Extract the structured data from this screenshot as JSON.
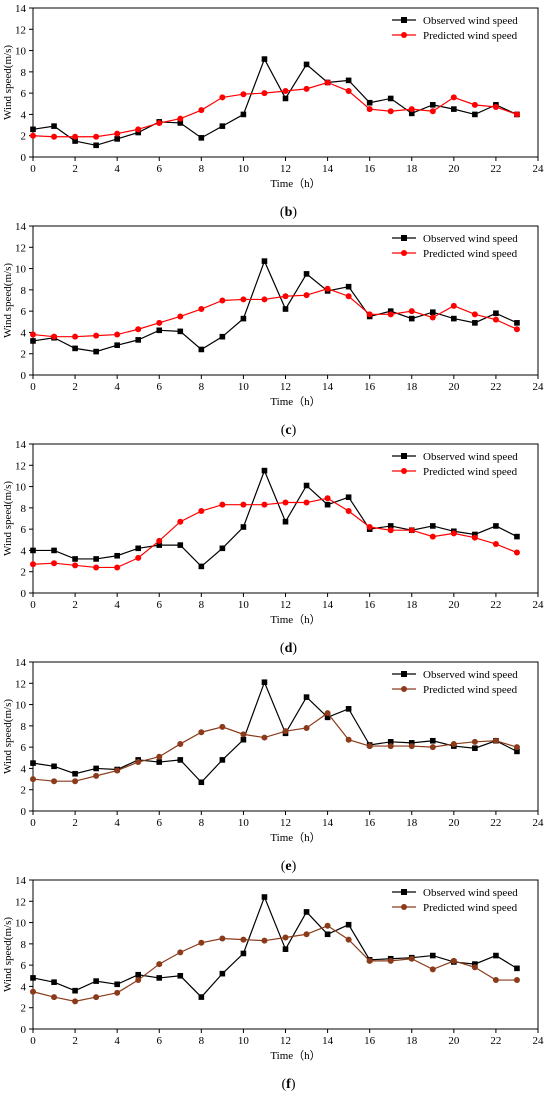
{
  "chart_data": [
    {
      "type": "line",
      "caption": "(b)",
      "caption_letter": "b",
      "xlabel": "Time（h）",
      "ylabel": "Wind speed(m/s)",
      "xlim": [
        0,
        24
      ],
      "ylim": [
        0,
        14
      ],
      "xticks": [
        0,
        2,
        4,
        6,
        8,
        10,
        12,
        14,
        16,
        18,
        20,
        22,
        24
      ],
      "yticks": [
        0,
        2,
        4,
        6,
        8,
        10,
        12,
        14
      ],
      "legend_position": "top-right",
      "x": [
        0,
        1,
        2,
        3,
        4,
        5,
        6,
        7,
        8,
        9,
        10,
        11,
        12,
        13,
        14,
        15,
        16,
        17,
        18,
        19,
        20,
        21,
        22,
        23
      ],
      "series": [
        {
          "name": "Observed wind speed",
          "color": "#000000",
          "marker": "square",
          "values": [
            2.6,
            2.9,
            1.5,
            1.1,
            1.7,
            2.3,
            3.3,
            3.2,
            1.8,
            2.9,
            4.0,
            9.2,
            5.5,
            8.7,
            7.0,
            7.2,
            5.1,
            5.5,
            4.1,
            4.9,
            4.5,
            4.0,
            4.9,
            4.0
          ]
        },
        {
          "name": "Predicted wind speed",
          "color": "#ff0000",
          "marker": "circle",
          "values": [
            2.0,
            1.9,
            1.9,
            1.9,
            2.2,
            2.6,
            3.2,
            3.6,
            4.4,
            5.6,
            5.9,
            6.0,
            6.2,
            6.4,
            7.0,
            6.2,
            4.5,
            4.3,
            4.5,
            4.3,
            5.6,
            4.9,
            4.7,
            4.0
          ]
        }
      ]
    },
    {
      "type": "line",
      "caption": "(c)",
      "caption_letter": "c",
      "xlabel": "Time（h）",
      "ylabel": "Wind speed(m/s)",
      "xlim": [
        0,
        24
      ],
      "ylim": [
        0,
        14
      ],
      "xticks": [
        0,
        2,
        4,
        6,
        8,
        10,
        12,
        14,
        16,
        18,
        20,
        22,
        24
      ],
      "yticks": [
        0,
        2,
        4,
        6,
        8,
        10,
        12,
        14
      ],
      "legend_position": "top-right",
      "x": [
        0,
        1,
        2,
        3,
        4,
        5,
        6,
        7,
        8,
        9,
        10,
        11,
        12,
        13,
        14,
        15,
        16,
        17,
        18,
        19,
        20,
        21,
        22,
        23
      ],
      "series": [
        {
          "name": "Observed wind speed",
          "color": "#000000",
          "marker": "square",
          "values": [
            3.2,
            3.5,
            2.5,
            2.2,
            2.8,
            3.3,
            4.2,
            4.1,
            2.4,
            3.6,
            5.3,
            10.7,
            6.2,
            9.5,
            7.9,
            8.3,
            5.5,
            6.0,
            5.3,
            5.9,
            5.3,
            4.9,
            5.8,
            4.9
          ]
        },
        {
          "name": "Predicted wind speed",
          "color": "#ff0000",
          "marker": "circle",
          "values": [
            3.8,
            3.6,
            3.6,
            3.7,
            3.8,
            4.3,
            4.9,
            5.5,
            6.2,
            7.0,
            7.1,
            7.1,
            7.4,
            7.5,
            8.1,
            7.4,
            5.7,
            5.7,
            6.0,
            5.4,
            6.5,
            5.7,
            5.2,
            4.3
          ]
        }
      ]
    },
    {
      "type": "line",
      "caption": "(d)",
      "caption_letter": "d",
      "xlabel": "Time（h）",
      "ylabel": "Wind speed(m/s)",
      "xlim": [
        0,
        24
      ],
      "ylim": [
        0,
        14
      ],
      "xticks": [
        0,
        2,
        4,
        6,
        8,
        10,
        12,
        14,
        16,
        18,
        20,
        22,
        24
      ],
      "yticks": [
        0,
        2,
        4,
        6,
        8,
        10,
        12,
        14
      ],
      "legend_position": "top-right",
      "x": [
        0,
        1,
        2,
        3,
        4,
        5,
        6,
        7,
        8,
        9,
        10,
        11,
        12,
        13,
        14,
        15,
        16,
        17,
        18,
        19,
        20,
        21,
        22,
        23
      ],
      "series": [
        {
          "name": "Observed wind speed",
          "color": "#000000",
          "marker": "square",
          "values": [
            4.0,
            4.0,
            3.2,
            3.2,
            3.5,
            4.2,
            4.5,
            4.5,
            2.5,
            4.2,
            6.2,
            11.5,
            6.7,
            10.1,
            8.3,
            9.0,
            6.0,
            6.3,
            5.9,
            6.3,
            5.8,
            5.5,
            6.3,
            5.3
          ]
        },
        {
          "name": "Predicted wind speed",
          "color": "#ff0000",
          "marker": "circle",
          "values": [
            2.7,
            2.8,
            2.6,
            2.4,
            2.4,
            3.3,
            4.9,
            6.7,
            7.7,
            8.3,
            8.3,
            8.3,
            8.5,
            8.5,
            8.9,
            7.7,
            6.2,
            5.9,
            5.9,
            5.3,
            5.6,
            5.2,
            4.6,
            3.8
          ]
        }
      ]
    },
    {
      "type": "line",
      "caption": "(e)",
      "caption_letter": "e",
      "xlabel": "Time（h）",
      "ylabel": "Wind speed(m/s)",
      "xlim": [
        0,
        24
      ],
      "ylim": [
        0,
        14
      ],
      "xticks": [
        0,
        2,
        4,
        6,
        8,
        10,
        12,
        14,
        16,
        18,
        20,
        22,
        24
      ],
      "yticks": [
        0,
        2,
        4,
        6,
        8,
        10,
        12,
        14
      ],
      "legend_position": "top-right",
      "x": [
        0,
        1,
        2,
        3,
        4,
        5,
        6,
        7,
        8,
        9,
        10,
        11,
        12,
        13,
        14,
        15,
        16,
        17,
        18,
        19,
        20,
        21,
        22,
        23
      ],
      "series": [
        {
          "name": "Observed wind speed",
          "color": "#000000",
          "marker": "square",
          "values": [
            4.5,
            4.2,
            3.5,
            4.0,
            3.9,
            4.8,
            4.6,
            4.8,
            2.7,
            4.8,
            6.7,
            12.1,
            7.3,
            10.7,
            8.8,
            9.6,
            6.2,
            6.5,
            6.4,
            6.6,
            6.1,
            5.9,
            6.6,
            5.6
          ]
        },
        {
          "name": "Predicted wind speed",
          "color": "#8b3a1a",
          "marker": "circle",
          "values": [
            3.0,
            2.8,
            2.8,
            3.3,
            3.8,
            4.6,
            5.1,
            6.3,
            7.4,
            7.9,
            7.2,
            6.9,
            7.5,
            7.8,
            9.2,
            6.7,
            6.1,
            6.1,
            6.1,
            6.0,
            6.3,
            6.5,
            6.6,
            6.0
          ]
        }
      ]
    },
    {
      "type": "line",
      "caption": "(f)",
      "caption_letter": "f",
      "xlabel": "Time（h）",
      "ylabel": "Wind speed(m/s)",
      "xlim": [
        0,
        24
      ],
      "ylim": [
        0,
        14
      ],
      "xticks": [
        0,
        2,
        4,
        6,
        8,
        10,
        12,
        14,
        16,
        18,
        20,
        22,
        24
      ],
      "yticks": [
        0,
        2,
        4,
        6,
        8,
        10,
        12,
        14
      ],
      "legend_position": "top-right",
      "x": [
        0,
        1,
        2,
        3,
        4,
        5,
        6,
        7,
        8,
        9,
        10,
        11,
        12,
        13,
        14,
        15,
        16,
        17,
        18,
        19,
        20,
        21,
        22,
        23
      ],
      "series": [
        {
          "name": "Observed wind speed",
          "color": "#000000",
          "marker": "square",
          "values": [
            4.8,
            4.4,
            3.6,
            4.5,
            4.2,
            5.1,
            4.8,
            5.0,
            3.0,
            5.2,
            7.1,
            12.4,
            7.5,
            11.0,
            8.9,
            9.8,
            6.5,
            6.6,
            6.7,
            6.9,
            6.3,
            6.1,
            6.9,
            5.7
          ]
        },
        {
          "name": "Predicted wind speed",
          "color": "#8b3a1a",
          "marker": "circle",
          "values": [
            3.5,
            3.0,
            2.6,
            3.0,
            3.4,
            4.6,
            6.1,
            7.2,
            8.1,
            8.5,
            8.4,
            8.3,
            8.6,
            8.9,
            9.7,
            8.4,
            6.4,
            6.4,
            6.6,
            5.6,
            6.4,
            5.8,
            4.6,
            4.6
          ]
        }
      ]
    }
  ]
}
